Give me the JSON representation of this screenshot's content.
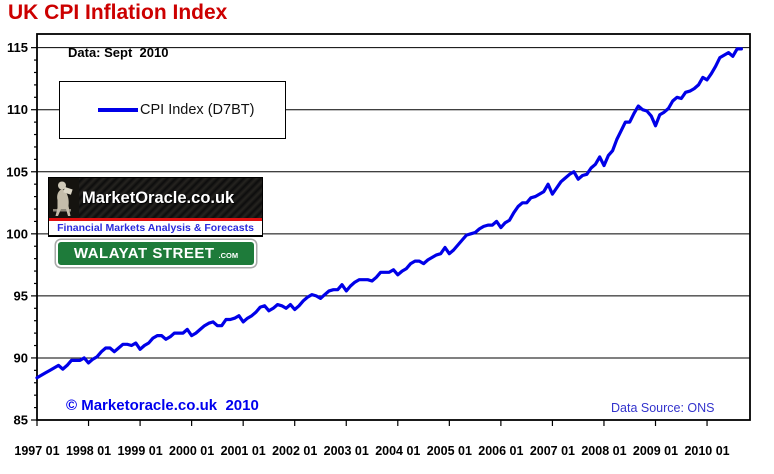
{
  "page": {
    "title": "UK CPI Inflation Index",
    "data_label": "Data: Sept  2010",
    "copyright": "© Marketoracle.co.uk  2010",
    "data_source": "Data Source: ONS"
  },
  "legend": {
    "label": "CPI Index (D7BT)"
  },
  "logos": {
    "marketoracle": {
      "name": "MarketOracle.co.uk",
      "tagline": "Financial Markets Analysis & Forecasts"
    },
    "walayat": {
      "name": "WALAYAT STREET",
      "suffix": ".COM"
    }
  },
  "colors": {
    "title_red": "#CC0000",
    "series_blue": "#0000E8",
    "copyright_blue": "#0000EE",
    "data_source_blue": "#3333CC",
    "walayat_green": "#1E7B3A",
    "logo_stripe_red": "#E01010",
    "tagline_blue": "#2B2BDD",
    "gridline_black": "#000000"
  },
  "chart_data": {
    "type": "line",
    "title": "UK CPI Inflation Index",
    "frequency": "monthly",
    "x_start": "1997 01",
    "x_end": "2010 09",
    "x_tick_labels": [
      "1997 01",
      "1998 01",
      "1999 01",
      "2000 01",
      "2001 01",
      "2002 01",
      "2003 01",
      "2004 01",
      "2005 01",
      "2006 01",
      "2007 01",
      "2008 01",
      "2009 01",
      "2010 01"
    ],
    "y_ticks": [
      85,
      90,
      95,
      100,
      105,
      110,
      115
    ],
    "y_minor_step": 1,
    "ylim": [
      85,
      116.1
    ],
    "grid": "horizontal-major",
    "legend_position": "top-left-box",
    "series": [
      {
        "name": "CPI Index (D7BT)",
        "color": "#0000E8",
        "values": [
          88.4,
          88.6,
          88.8,
          89.0,
          89.2,
          89.4,
          89.1,
          89.4,
          89.8,
          89.8,
          89.8,
          90.0,
          89.6,
          89.9,
          90.1,
          90.5,
          90.8,
          90.8,
          90.5,
          90.8,
          91.1,
          91.1,
          91.0,
          91.2,
          90.7,
          91.0,
          91.2,
          91.6,
          91.8,
          91.8,
          91.5,
          91.7,
          92.0,
          92.0,
          92.0,
          92.3,
          91.8,
          92.0,
          92.3,
          92.6,
          92.8,
          92.9,
          92.6,
          92.6,
          93.1,
          93.1,
          93.2,
          93.4,
          92.9,
          93.2,
          93.4,
          93.7,
          94.1,
          94.2,
          93.8,
          94.0,
          94.3,
          94.2,
          94.0,
          94.3,
          93.9,
          94.2,
          94.6,
          94.9,
          95.1,
          95.0,
          94.8,
          95.1,
          95.4,
          95.5,
          95.5,
          95.9,
          95.4,
          95.8,
          96.1,
          96.3,
          96.3,
          96.3,
          96.2,
          96.5,
          96.9,
          96.9,
          96.9,
          97.1,
          96.7,
          97.0,
          97.2,
          97.6,
          97.8,
          97.8,
          97.6,
          97.9,
          98.1,
          98.3,
          98.4,
          98.9,
          98.4,
          98.7,
          99.1,
          99.5,
          99.9,
          100.0,
          100.1,
          100.4,
          100.6,
          100.7,
          100.7,
          101.0,
          100.5,
          100.9,
          101.1,
          101.7,
          102.2,
          102.5,
          102.5,
          102.9,
          103.0,
          103.2,
          103.4,
          104.0,
          103.2,
          103.7,
          104.2,
          104.5,
          104.8,
          105.0,
          104.4,
          104.7,
          104.8,
          105.3,
          105.6,
          106.2,
          105.5,
          106.3,
          106.7,
          107.6,
          108.3,
          109.0,
          109.0,
          109.7,
          110.3,
          110.0,
          109.9,
          109.5,
          108.7,
          109.6,
          109.8,
          110.1,
          110.7,
          111.0,
          110.9,
          111.4,
          111.5,
          111.7,
          112.0,
          112.6,
          112.4,
          112.9,
          113.5,
          114.2,
          114.4,
          114.6,
          114.3,
          114.9,
          114.9
        ]
      }
    ]
  }
}
